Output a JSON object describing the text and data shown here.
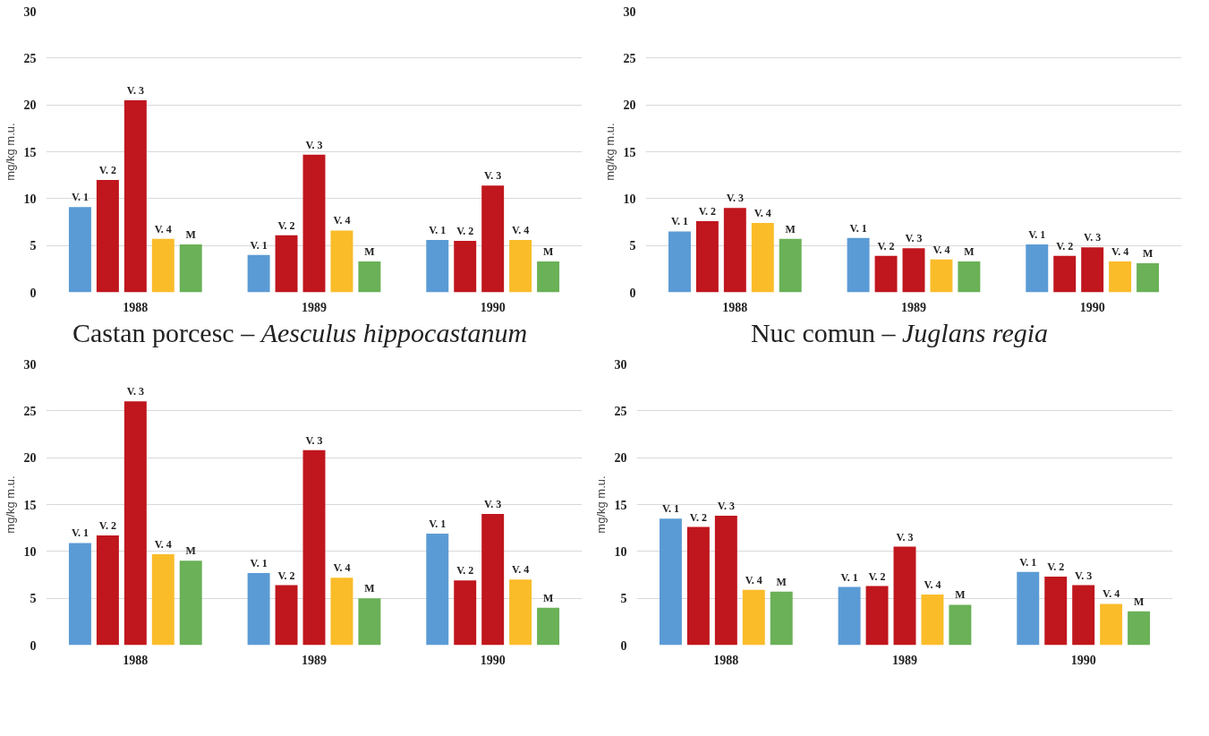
{
  "chart_data": [
    {
      "type": "bar",
      "title": "Castan porcesc – Aesculus hippocastanum",
      "ylabel": "mg/kg m.u.",
      "categories": [
        "1988",
        "1989",
        "1990"
      ],
      "ylim": [
        0,
        30
      ],
      "yticks": [
        0,
        5,
        10,
        15,
        20,
        25,
        30
      ],
      "grid": "y",
      "series": [
        {
          "name": "V. 1",
          "color": "#5b9bd5",
          "values": [
            9.1,
            4.0,
            5.6
          ]
        },
        {
          "name": "V. 2",
          "color": "#c0161d",
          "values": [
            12.0,
            6.1,
            5.5
          ]
        },
        {
          "name": "V. 3",
          "color": "#c0161d",
          "values": [
            20.5,
            14.7,
            11.4
          ]
        },
        {
          "name": "V. 4",
          "color": "#fbbc2a",
          "values": [
            5.7,
            6.6,
            5.6
          ]
        },
        {
          "name": "M",
          "color": "#6ab157",
          "values": [
            5.1,
            3.3,
            3.3
          ]
        }
      ]
    },
    {
      "type": "bar",
      "title": "Nuc comun – Juglans regia",
      "ylabel": "mg/kg m.u.",
      "categories": [
        "1988",
        "1989",
        "1990"
      ],
      "ylim": [
        0,
        30
      ],
      "yticks": [
        0,
        5,
        10,
        15,
        20,
        25,
        30
      ],
      "grid": "y",
      "series": [
        {
          "name": "V. 1",
          "color": "#5b9bd5",
          "values": [
            6.5,
            5.8,
            5.1
          ]
        },
        {
          "name": "V. 2",
          "color": "#c0161d",
          "values": [
            7.6,
            3.9,
            3.9
          ]
        },
        {
          "name": "V. 3",
          "color": "#c0161d",
          "values": [
            9.0,
            4.7,
            4.8
          ]
        },
        {
          "name": "V. 4",
          "color": "#fbbc2a",
          "values": [
            7.4,
            3.5,
            3.3
          ]
        },
        {
          "name": "M",
          "color": "#6ab157",
          "values": [
            5.7,
            3.3,
            3.1
          ]
        }
      ]
    },
    {
      "type": "bar",
      "ylabel": "mg/kg m.u.",
      "categories": [
        "1988",
        "1989",
        "1990"
      ],
      "ylim": [
        0,
        30
      ],
      "yticks": [
        0,
        5,
        10,
        15,
        20,
        25,
        30
      ],
      "grid": "y",
      "series": [
        {
          "name": "V. 1",
          "color": "#5b9bd5",
          "values": [
            10.9,
            7.7,
            11.9
          ]
        },
        {
          "name": "V. 2",
          "color": "#c0161d",
          "values": [
            11.7,
            6.4,
            6.9
          ]
        },
        {
          "name": "V. 3",
          "color": "#c0161d",
          "values": [
            26.0,
            20.8,
            14.0
          ]
        },
        {
          "name": "V. 4",
          "color": "#fbbc2a",
          "values": [
            9.7,
            7.2,
            7.0
          ]
        },
        {
          "name": "M",
          "color": "#6ab157",
          "values": [
            9.0,
            5.0,
            4.0
          ]
        }
      ]
    },
    {
      "type": "bar",
      "ylabel": "mg/kg m.u.",
      "categories": [
        "1988",
        "1989",
        "1990"
      ],
      "ylim": [
        0,
        30
      ],
      "yticks": [
        0,
        5,
        10,
        15,
        20,
        25,
        30
      ],
      "grid": "y",
      "series": [
        {
          "name": "V. 1",
          "color": "#5b9bd5",
          "values": [
            13.5,
            6.2,
            7.8
          ]
        },
        {
          "name": "V. 2",
          "color": "#c0161d",
          "values": [
            12.6,
            6.3,
            7.3
          ]
        },
        {
          "name": "V. 3",
          "color": "#c0161d",
          "values": [
            13.8,
            10.5,
            6.4
          ]
        },
        {
          "name": "V. 4",
          "color": "#fbbc2a",
          "values": [
            5.9,
            5.4,
            4.4
          ]
        },
        {
          "name": "M",
          "color": "#6ab157",
          "values": [
            5.7,
            4.3,
            3.6
          ]
        }
      ]
    }
  ]
}
